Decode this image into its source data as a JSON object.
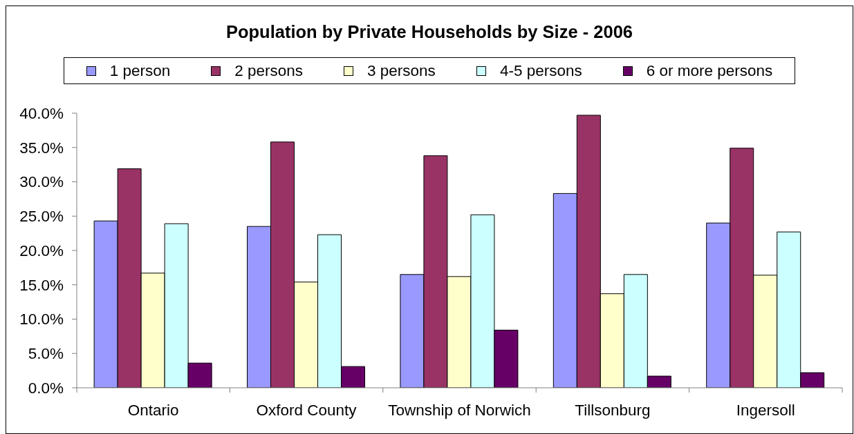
{
  "chart_data": {
    "type": "bar",
    "title": "Population by Private Households by Size - 2006",
    "categories": [
      "Ontario",
      "Oxford County",
      "Township of Norwich",
      "Tillsonburg",
      "Ingersoll"
    ],
    "series": [
      {
        "name": "1 person",
        "color": "#9999ff",
        "values": [
          24.3,
          23.5,
          16.5,
          28.3,
          24.0
        ]
      },
      {
        "name": "2 persons",
        "color": "#993366",
        "values": [
          31.9,
          35.8,
          33.8,
          39.7,
          34.9
        ]
      },
      {
        "name": "3 persons",
        "color": "#ffffcc",
        "values": [
          16.7,
          15.4,
          16.2,
          13.7,
          16.4
        ]
      },
      {
        "name": "4-5 persons",
        "color": "#ccffff",
        "values": [
          23.9,
          22.3,
          25.2,
          16.5,
          22.7
        ]
      },
      {
        "name": "6 or more persons",
        "color": "#660066",
        "values": [
          3.6,
          3.1,
          8.4,
          1.7,
          2.2
        ]
      }
    ],
    "ylim": [
      0,
      40
    ],
    "yticks": [
      {
        "value": 0,
        "label": "0.0%"
      },
      {
        "value": 5,
        "label": "5.0%"
      },
      {
        "value": 10,
        "label": "10.0%"
      },
      {
        "value": 15,
        "label": "15.0%"
      },
      {
        "value": 20,
        "label": "20.0%"
      },
      {
        "value": 25,
        "label": "25.0%"
      },
      {
        "value": 30,
        "label": "30.0%"
      },
      {
        "value": 35,
        "label": "35.0%"
      },
      {
        "value": 40,
        "label": "40.0%"
      }
    ],
    "legend": "top"
  }
}
